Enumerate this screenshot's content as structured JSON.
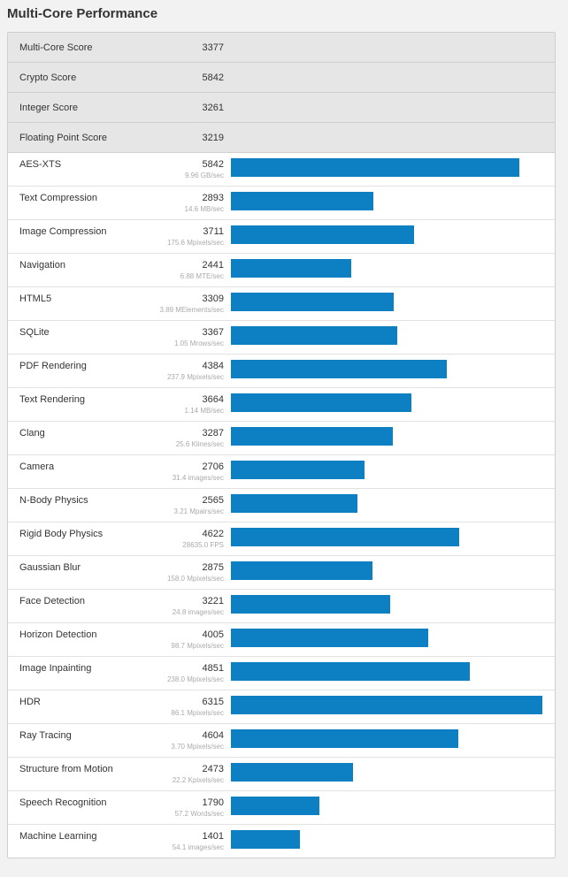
{
  "title": "Multi-Core Performance",
  "accent_color": "#0c80c2",
  "summary": [
    {
      "name": "Multi-Core Score",
      "score": "3377"
    },
    {
      "name": "Crypto Score",
      "score": "5842"
    },
    {
      "name": "Integer Score",
      "score": "3261"
    },
    {
      "name": "Floating Point Score",
      "score": "3219"
    }
  ],
  "max_score": 6315,
  "benchmarks": [
    {
      "name": "AES-XTS",
      "score": 5842,
      "rate": "9.96 GB/sec"
    },
    {
      "name": "Text Compression",
      "score": 2893,
      "rate": "14.6 MB/sec"
    },
    {
      "name": "Image Compression",
      "score": 3711,
      "rate": "175.6 Mpixels/sec"
    },
    {
      "name": "Navigation",
      "score": 2441,
      "rate": "6.88 MTE/sec"
    },
    {
      "name": "HTML5",
      "score": 3309,
      "rate": "3.89 MElements/sec"
    },
    {
      "name": "SQLite",
      "score": 3367,
      "rate": "1.05 Mrows/sec"
    },
    {
      "name": "PDF Rendering",
      "score": 4384,
      "rate": "237.9 Mpixels/sec"
    },
    {
      "name": "Text Rendering",
      "score": 3664,
      "rate": "1.14 MB/sec"
    },
    {
      "name": "Clang",
      "score": 3287,
      "rate": "25.6 Klines/sec"
    },
    {
      "name": "Camera",
      "score": 2706,
      "rate": "31.4 images/sec"
    },
    {
      "name": "N-Body Physics",
      "score": 2565,
      "rate": "3.21 Mpairs/sec"
    },
    {
      "name": "Rigid Body Physics",
      "score": 4622,
      "rate": "28635.0 FPS"
    },
    {
      "name": "Gaussian Blur",
      "score": 2875,
      "rate": "158.0 Mpixels/sec"
    },
    {
      "name": "Face Detection",
      "score": 3221,
      "rate": "24.8 images/sec"
    },
    {
      "name": "Horizon Detection",
      "score": 4005,
      "rate": "98.7 Mpixels/sec"
    },
    {
      "name": "Image Inpainting",
      "score": 4851,
      "rate": "238.0 Mpixels/sec"
    },
    {
      "name": "HDR",
      "score": 6315,
      "rate": "86.1 Mpixels/sec"
    },
    {
      "name": "Ray Tracing",
      "score": 4604,
      "rate": "3.70 Mpixels/sec"
    },
    {
      "name": "Structure from Motion",
      "score": 2473,
      "rate": "22.2 Kpixels/sec"
    },
    {
      "name": "Speech Recognition",
      "score": 1790,
      "rate": "57.2 Words/sec"
    },
    {
      "name": "Machine Learning",
      "score": 1401,
      "rate": "54.1 images/sec"
    }
  ]
}
